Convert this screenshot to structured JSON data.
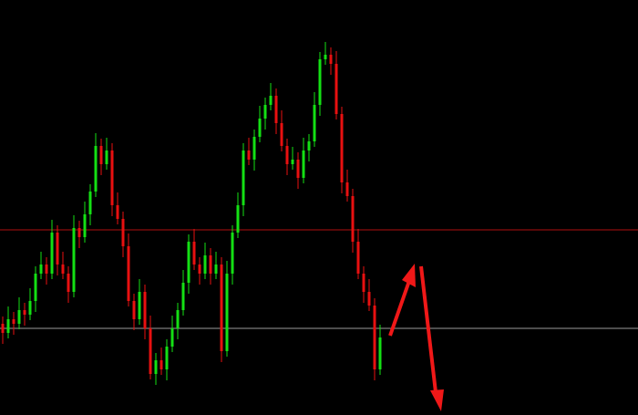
{
  "chart_data": {
    "type": "candlestick",
    "open": [
      100,
      90,
      105,
      100,
      115,
      110,
      125,
      155,
      165,
      155,
      200,
      165,
      155,
      135,
      205,
      195,
      220,
      245,
      295,
      275,
      290,
      230,
      215,
      185,
      125,
      105,
      135,
      95,
      45,
      60,
      50,
      75,
      95,
      115,
      145,
      190,
      165,
      155,
      175,
      155,
      165,
      70,
      155,
      200,
      230,
      290,
      280,
      305,
      325,
      340,
      350,
      320,
      295,
      275,
      280,
      260,
      290,
      300,
      340,
      390,
      395,
      385,
      330,
      255,
      240,
      190,
      155,
      135,
      120,
      50
    ],
    "high": [
      108,
      119,
      113,
      129,
      123,
      139,
      163,
      179,
      173,
      214,
      208,
      179,
      163,
      219,
      213,
      234,
      253,
      309,
      303,
      304,
      298,
      244,
      223,
      199,
      133,
      149,
      143,
      109,
      68,
      74,
      83,
      109,
      123,
      159,
      198,
      204,
      173,
      189,
      183,
      179,
      173,
      169,
      208,
      244,
      298,
      304,
      313,
      339,
      348,
      364,
      358,
      334,
      303,
      294,
      288,
      304,
      308,
      354,
      398,
      409,
      403,
      399,
      338,
      269,
      248,
      204,
      163,
      149,
      128,
      99
    ],
    "low": [
      78,
      84,
      88,
      94,
      98,
      104,
      113,
      149,
      143,
      149,
      153,
      149,
      123,
      129,
      183,
      189,
      208,
      239,
      263,
      269,
      218,
      209,
      173,
      119,
      93,
      99,
      83,
      39,
      33,
      44,
      38,
      69,
      83,
      109,
      133,
      159,
      143,
      149,
      143,
      149,
      58,
      64,
      143,
      194,
      218,
      274,
      268,
      299,
      313,
      334,
      308,
      289,
      263,
      269,
      248,
      254,
      278,
      294,
      328,
      384,
      373,
      324,
      243,
      234,
      178,
      149,
      123,
      114,
      38,
      44
    ],
    "close": [
      90,
      105,
      100,
      115,
      110,
      125,
      155,
      165,
      155,
      200,
      165,
      155,
      135,
      205,
      195,
      220,
      245,
      295,
      275,
      290,
      230,
      215,
      185,
      125,
      105,
      135,
      95,
      45,
      60,
      50,
      75,
      95,
      115,
      145,
      190,
      165,
      155,
      175,
      155,
      165,
      70,
      155,
      200,
      230,
      290,
      280,
      305,
      325,
      340,
      350,
      320,
      295,
      275,
      280,
      260,
      290,
      300,
      340,
      390,
      395,
      385,
      330,
      255,
      240,
      190,
      155,
      135,
      120,
      50,
      85
    ],
    "up_color": "#14e014",
    "down_color": "#e81010",
    "ylim": [
      0,
      455
    ],
    "hlines": [
      {
        "value": 203,
        "color": "#b01010"
      },
      {
        "value": 95,
        "color": "#9a9a9a"
      }
    ]
  }
}
